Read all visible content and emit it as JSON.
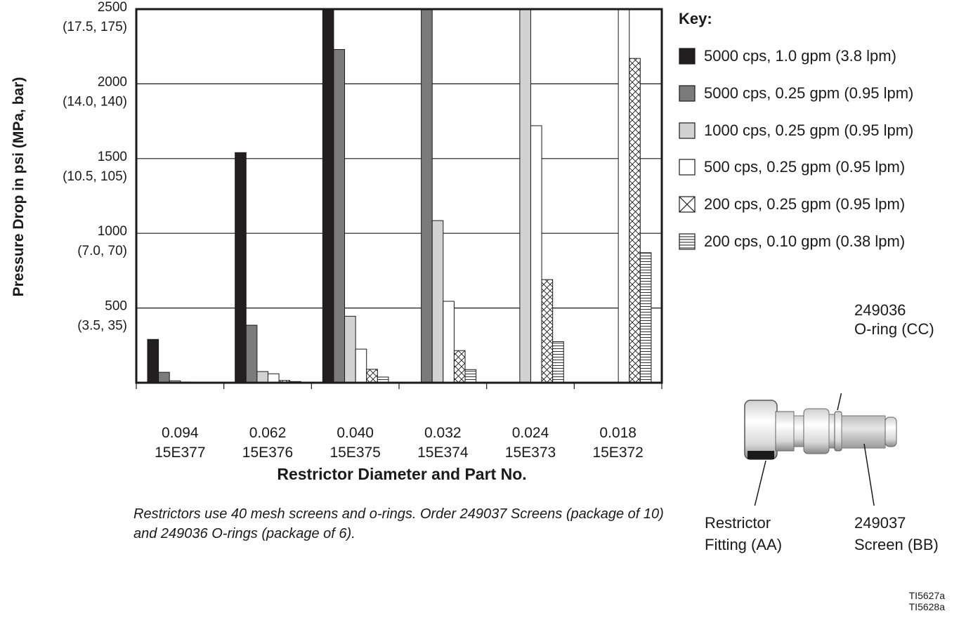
{
  "chart_data": {
    "type": "bar",
    "title": "",
    "ylabel": "Pressure Drop in psi (MPa, bar)",
    "xlabel": "Restrictor Diameter and Part No.",
    "ylim": [
      0,
      2500
    ],
    "y_ticks": [
      {
        "value": 2500,
        "line1": "2500",
        "line2": "(17.5, 175)"
      },
      {
        "value": 2000,
        "line1": "2000",
        "line2": "(14.0, 140)"
      },
      {
        "value": 1500,
        "line1": "1500",
        "line2": "(10.5, 105)"
      },
      {
        "value": 1000,
        "line1": "1000",
        "line2": "(7.0, 70)"
      },
      {
        "value": 500,
        "line1": "500",
        "line2": "(3.5, 35)"
      }
    ],
    "categories": [
      {
        "diameter": "0.094",
        "part": "15E377"
      },
      {
        "diameter": "0.062",
        "part": "15E376"
      },
      {
        "diameter": "0.040",
        "part": "15E375"
      },
      {
        "diameter": "0.032",
        "part": "15E374"
      },
      {
        "diameter": "0.024",
        "part": "15E373"
      },
      {
        "diameter": "0.018",
        "part": "15E372"
      }
    ],
    "series": [
      {
        "name": "5000 cps, 1.0 gpm (3.8 lpm)",
        "fill": "#231f20",
        "pattern": "solid",
        "values": [
          290,
          1540,
          2500,
          null,
          null,
          null
        ]
      },
      {
        "name": "5000 cps, 0.25 gpm (0.95 lpm)",
        "fill": "#7b7b7b",
        "pattern": "solid",
        "values": [
          70,
          385,
          2230,
          2500,
          null,
          null
        ]
      },
      {
        "name": "1000 cps, 0.25 gpm (0.95 lpm)",
        "fill": "#d2d2d2",
        "pattern": "solid",
        "values": [
          13,
          75,
          445,
          1085,
          2500,
          null
        ]
      },
      {
        "name": "500 cps, 0.25 gpm (0.95 lpm)",
        "fill": "#ffffff",
        "pattern": "solid",
        "values": [
          5,
          60,
          225,
          545,
          1720,
          2500
        ]
      },
      {
        "name": "200 cps, 0.25 gpm (0.95 lpm)",
        "fill": "#ffffff",
        "pattern": "crosshatch",
        "values": [
          3,
          15,
          90,
          215,
          690,
          2170
        ]
      },
      {
        "name": "200 cps, 0.10 gpm (0.38 lpm)",
        "fill": "#ffffff",
        "pattern": "horizontal",
        "values": [
          2,
          8,
          38,
          88,
          275,
          870
        ]
      }
    ],
    "grid": true,
    "legend_position": "right"
  },
  "legend": {
    "title": "Key:"
  },
  "caption": "Restrictors use 40 mesh screens and o-rings. Order 249037 Screens (package of 10) and 249036 O-rings (package of 6).",
  "illustration": {
    "oring_part": "249036",
    "oring_name": "O-ring (CC)",
    "fitting_line1": "Restrictor",
    "fitting_line2": "Fitting (AA)",
    "screen_part": "249037",
    "screen_name": "Screen (BB)"
  },
  "figure_ids": [
    "TI5627a",
    "TI5628a"
  ]
}
